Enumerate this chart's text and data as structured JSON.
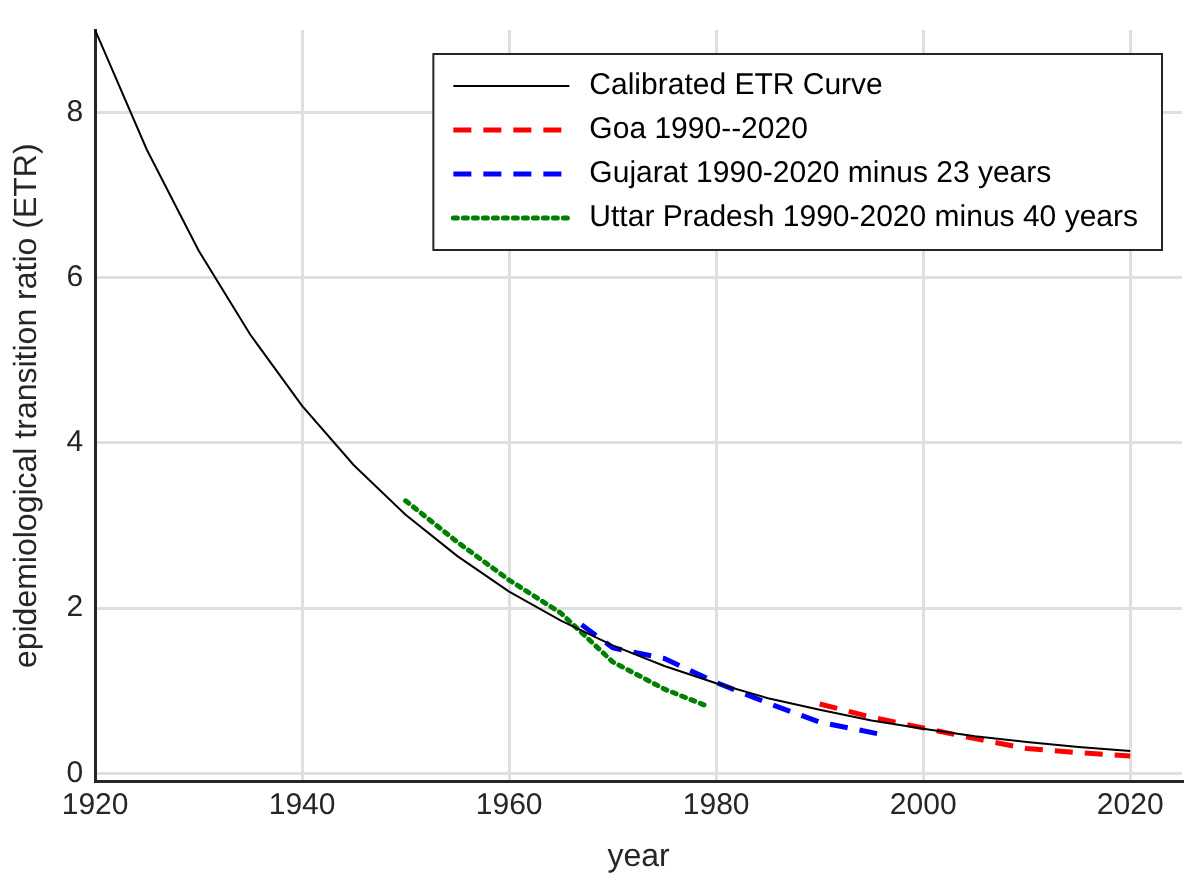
{
  "chart_data": {
    "type": "line",
    "xlabel": "year",
    "ylabel": "epidemiological transition ratio (ETR)",
    "xlim": [
      1920,
      2025
    ],
    "ylim": [
      -0.1,
      9
    ],
    "xticks": [
      1920,
      1940,
      1960,
      1980,
      2000,
      2020
    ],
    "yticks": [
      0,
      2,
      4,
      6,
      8
    ],
    "grid": true,
    "legend": "top right",
    "marker": "none",
    "series": [
      {
        "name": "Calibrated ETR Curve",
        "color": "#000000",
        "line_style": "solid",
        "x": [
          1920,
          1925,
          1930,
          1935,
          1940,
          1945,
          1950,
          1955,
          1960,
          1965,
          1970,
          1975,
          1980,
          1985,
          1990,
          1995,
          2000,
          2005,
          2010,
          2015,
          2020
        ],
        "values": [
          9,
          7.55,
          6.33,
          5.31,
          4.45,
          3.73,
          3.13,
          2.63,
          2.2,
          1.85,
          1.55,
          1.3,
          1.09,
          0.91,
          0.77,
          0.64,
          0.54,
          0.45,
          0.38,
          0.32,
          0.27
        ]
      },
      {
        "name": "Goa 1990--2020",
        "color": "#ff0000",
        "line_style": "dashed",
        "x": [
          1990,
          1995,
          2000,
          2005,
          2010,
          2015,
          2020
        ],
        "values": [
          0.84,
          0.68,
          0.55,
          0.42,
          0.3,
          0.25,
          0.21
        ]
      },
      {
        "name": "Gujarat 1990-2020 minus 23 years",
        "color": "#0000ff",
        "line_style": "dashed",
        "x": [
          1967,
          1970,
          1975,
          1980,
          1985,
          1990,
          1996
        ],
        "values": [
          1.8,
          1.52,
          1.39,
          1.1,
          0.85,
          0.62,
          0.47
        ]
      },
      {
        "name": "Uttar Pradesh 1990-2020 minus 40 years",
        "color": "#008000",
        "line_style": "dotted",
        "x": [
          1950,
          1955,
          1960,
          1965,
          1970,
          1975,
          1979
        ],
        "values": [
          3.3,
          2.8,
          2.34,
          1.94,
          1.35,
          1.02,
          0.82
        ]
      }
    ]
  }
}
